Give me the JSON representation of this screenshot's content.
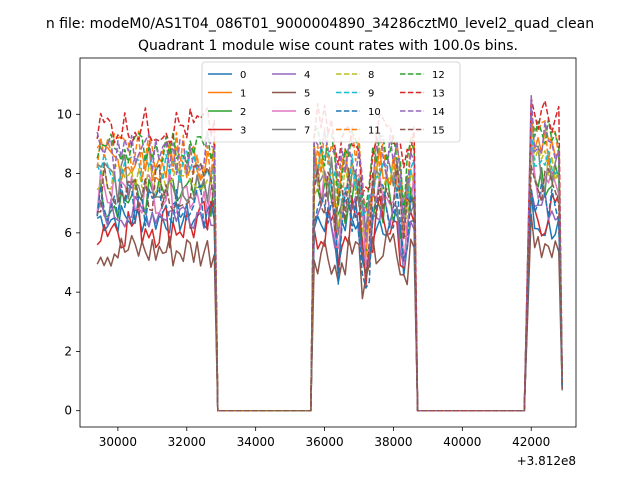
{
  "chart_data": {
    "type": "line",
    "suptitle": "n file: modeM0/AS1T04_086T01_9000004890_34286cztM0_level2_quad_clean",
    "title": "Quadrant 1 module wise count rates with 100.0s bins.",
    "xlabel": "",
    "ylabel": "",
    "offset_text": "+3.812e8",
    "xlim": [
      28900,
      43300
    ],
    "ylim": [
      -0.55,
      11.9
    ],
    "x_ticks": [
      30000,
      32000,
      34000,
      36000,
      38000,
      40000,
      42000
    ],
    "y_ticks": [
      0,
      2,
      4,
      6,
      8,
      10
    ],
    "segments": [
      {
        "start": 29400,
        "end": 32800
      },
      {
        "start": 35700,
        "end": 38600
      },
      {
        "start": 42000,
        "end": 42800
      }
    ],
    "zero_ranges": [
      [
        32900,
        35600
      ],
      [
        38700,
        41900
      ]
    ],
    "legend": {
      "location": "upper-center",
      "columns": 4
    },
    "series": [
      {
        "name": "0",
        "color": "#1f77b4",
        "dash": "solid",
        "level": 6.5,
        "seg3_level": 6.2,
        "dip": 4.6
      },
      {
        "name": "1",
        "color": "#ff7f0e",
        "dash": "solid",
        "level": 8.4,
        "seg3_level": 8.9,
        "dip": 6.2
      },
      {
        "name": "2",
        "color": "#2ca02c",
        "dash": "solid",
        "level": 7.2,
        "seg3_level": 7.7,
        "dip": 5.4
      },
      {
        "name": "3",
        "color": "#d62728",
        "dash": "solid",
        "level": 6.3,
        "seg3_level": 6.6,
        "dip": 4.9
      },
      {
        "name": "4",
        "color": "#9467bd",
        "dash": "solid",
        "level": 6.7,
        "seg3_level": 6.9,
        "dip": 5.1
      },
      {
        "name": "5",
        "color": "#8c564b",
        "dash": "solid",
        "level": 5.4,
        "seg3_level": 5.7,
        "dip": 4.0
      },
      {
        "name": "6",
        "color": "#e377c2",
        "dash": "solid",
        "level": 7.4,
        "seg3_level": 7.6,
        "dip": 5.6
      },
      {
        "name": "7",
        "color": "#7f7f7f",
        "dash": "solid",
        "level": 7.8,
        "seg3_level": 8.1,
        "dip": 5.9
      },
      {
        "name": "8",
        "color": "#bcbd22",
        "dash": "dashed",
        "level": 7.9,
        "seg3_level": 8.3,
        "dip": 6.0
      },
      {
        "name": "9",
        "color": "#17becf",
        "dash": "dashed",
        "level": 8.2,
        "seg3_level": 8.6,
        "dip": 6.3
      },
      {
        "name": "10",
        "color": "#1f77b4",
        "dash": "dashed",
        "level": 6.9,
        "seg3_level": 7.1,
        "dip": 4.2
      },
      {
        "name": "11",
        "color": "#ff7f0e",
        "dash": "dashed",
        "level": 8.6,
        "seg3_level": 9.0,
        "dip": 6.5
      },
      {
        "name": "12",
        "color": "#2ca02c",
        "dash": "dashed",
        "level": 8.9,
        "seg3_level": 9.4,
        "dip": 6.8
      },
      {
        "name": "13",
        "color": "#d62728",
        "dash": "dashed",
        "level": 9.6,
        "seg3_level": 9.9,
        "dip": 7.3
      },
      {
        "name": "14",
        "color": "#9467bd",
        "dash": "dashed",
        "level": 8.7,
        "seg3_level": 9.2,
        "dip": 6.7
      },
      {
        "name": "15",
        "color": "#8c564b",
        "dash": "dashed",
        "level": 7.5,
        "seg3_level": 7.8,
        "dip": 5.7
      }
    ]
  }
}
